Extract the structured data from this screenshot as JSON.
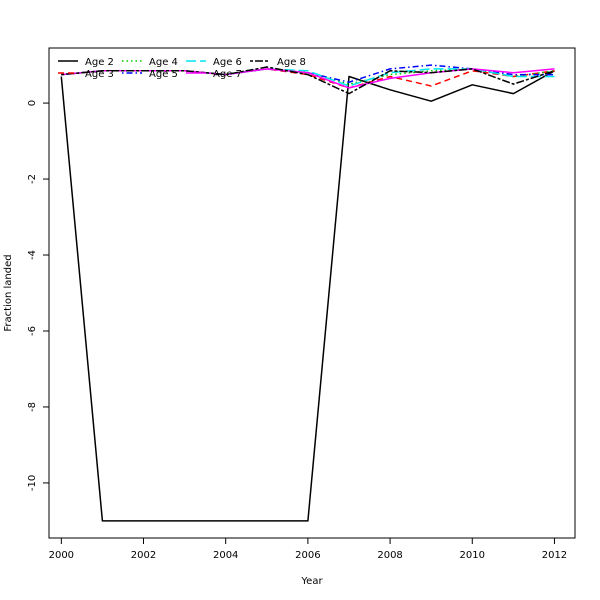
{
  "chart_data": {
    "type": "line",
    "title": "",
    "xlabel": "Year",
    "ylabel": "Fraction landed",
    "xlim": [
      1999.7,
      2012.5
    ],
    "ylim": [
      -11.45,
      1.45
    ],
    "x_ticks": [
      2000,
      2002,
      2004,
      2006,
      2008,
      2010,
      2012
    ],
    "y_ticks": [
      0,
      -2,
      -4,
      -6,
      -8,
      -10
    ],
    "legend_position": "top-left",
    "x": [
      2000,
      2001,
      2002,
      2003,
      2004,
      2005,
      2006,
      2007,
      2008,
      2009,
      2010,
      2011,
      2012
    ],
    "series": [
      {
        "name": "Age 2",
        "color": "#000000",
        "dash": "solid",
        "values": [
          0.7,
          -11.0,
          -11.0,
          -11.0,
          -11.0,
          -11.0,
          -11.0,
          0.7,
          0.35,
          0.05,
          0.48,
          0.25,
          0.85
        ]
      },
      {
        "name": "Age 3",
        "color": "#ff0000",
        "dash": "dashed",
        "values": [
          0.75,
          0.85,
          0.85,
          0.85,
          0.75,
          0.9,
          0.75,
          0.4,
          0.7,
          0.45,
          0.85,
          0.7,
          0.85
        ]
      },
      {
        "name": "Age 4",
        "color": "#00cd00",
        "dash": "dotted",
        "values": [
          0.75,
          0.85,
          0.85,
          0.85,
          0.75,
          0.9,
          0.8,
          0.5,
          0.75,
          0.85,
          0.9,
          0.7,
          0.85
        ]
      },
      {
        "name": "Age 5",
        "color": "#0000ff",
        "dash": "dotdash",
        "values": [
          0.75,
          0.85,
          0.85,
          0.85,
          0.75,
          0.9,
          0.8,
          0.55,
          0.9,
          1.0,
          0.9,
          0.75,
          0.75
        ]
      },
      {
        "name": "Age 6",
        "color": "#00e5ee",
        "dash": "longdash",
        "values": [
          0.75,
          0.85,
          0.85,
          0.85,
          0.75,
          0.9,
          0.85,
          0.45,
          0.8,
          0.9,
          0.9,
          0.7,
          0.7
        ]
      },
      {
        "name": "Age 7",
        "color": "#ff00ff",
        "dash": "solid",
        "values": [
          0.75,
          0.85,
          0.85,
          0.85,
          0.75,
          0.9,
          0.8,
          0.4,
          0.65,
          0.8,
          0.9,
          0.8,
          0.9
        ]
      },
      {
        "name": "Age 8",
        "color": "#000000",
        "dash": "twodash",
        "values": [
          0.75,
          0.85,
          0.85,
          0.85,
          0.75,
          0.95,
          0.75,
          0.25,
          0.85,
          0.8,
          0.9,
          0.5,
          0.85
        ]
      }
    ]
  }
}
